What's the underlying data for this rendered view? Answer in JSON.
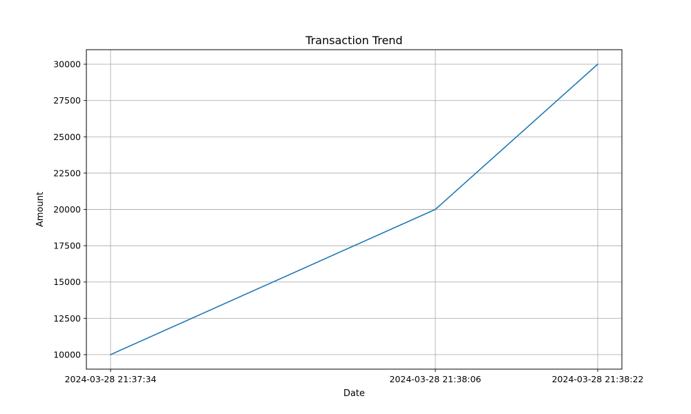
{
  "chart_data": {
    "type": "line",
    "title": "Transaction Trend",
    "xlabel": "Date",
    "ylabel": "Amount",
    "x": [
      "2024-03-28 21:37:34",
      "2024-03-28 21:38:06",
      "2024-03-28 21:38:22"
    ],
    "series": [
      {
        "values": [
          10000,
          20000,
          30000
        ]
      }
    ],
    "ylim": [
      9000,
      31000
    ],
    "yticks": [
      10000,
      12500,
      15000,
      17500,
      20000,
      22500,
      25000,
      27500,
      30000
    ],
    "grid": true,
    "line_color": "#1f77b4"
  }
}
